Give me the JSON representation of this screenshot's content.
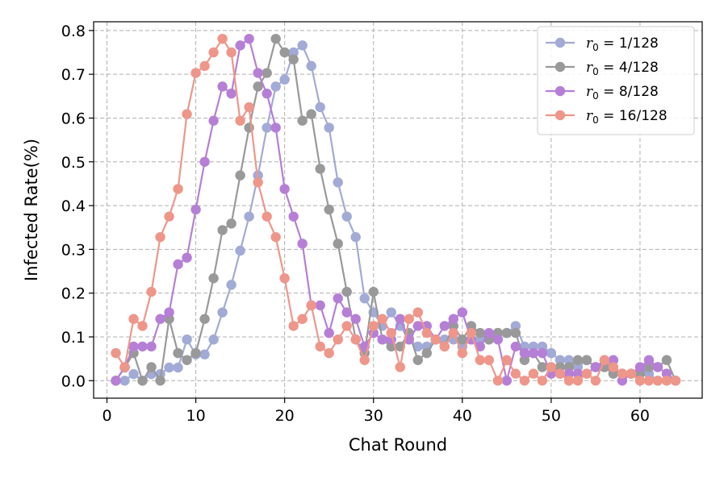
{
  "chart_data": {
    "type": "line",
    "title": "",
    "xlabel": "Chat Round",
    "ylabel": "Infected Rate(%)",
    "xlim": [
      -1.5,
      67
    ],
    "ylim": [
      -0.04,
      0.82
    ],
    "xticks": [
      0,
      10,
      20,
      30,
      40,
      50,
      60
    ],
    "yticks": [
      0.0,
      0.1,
      0.2,
      0.3,
      0.4,
      0.5,
      0.6,
      0.7,
      0.8
    ],
    "xtick_labels": [
      "0",
      "10",
      "20",
      "30",
      "40",
      "50",
      "60"
    ],
    "ytick_labels": [
      "0.0",
      "0.1",
      "0.2",
      "0.3",
      "0.4",
      "0.5",
      "0.6",
      "0.7",
      "0.8"
    ],
    "grid": true,
    "grid_style": "dashed",
    "legend_position": "top-right",
    "x": [
      1,
      2,
      3,
      4,
      5,
      6,
      7,
      8,
      9,
      10,
      11,
      12,
      13,
      14,
      15,
      16,
      17,
      18,
      19,
      20,
      21,
      22,
      23,
      24,
      25,
      26,
      27,
      28,
      29,
      30,
      31,
      32,
      33,
      34,
      35,
      36,
      37,
      38,
      39,
      40,
      41,
      42,
      43,
      44,
      45,
      46,
      47,
      48,
      49,
      50,
      51,
      52,
      53,
      54,
      55,
      56,
      57,
      58,
      59,
      60,
      61,
      62,
      63,
      64
    ],
    "series": [
      {
        "name": "1/128",
        "color": "#a2aad6",
        "values": [
          0,
          0,
          0.015,
          0,
          0.015,
          0.015,
          0.03,
          0.03,
          0.094,
          0.06,
          0.06,
          0.094,
          0.156,
          0.219,
          0.297,
          0.375,
          0.469,
          0.578,
          0.672,
          0.688,
          0.75,
          0.766,
          0.719,
          0.625,
          0.578,
          0.453,
          0.375,
          0.328,
          0.188,
          0.156,
          0.125,
          0.156,
          0.125,
          0.094,
          0.078,
          0.078,
          0.094,
          0.094,
          0.094,
          0.078,
          0.094,
          0.094,
          0.094,
          0.109,
          0.109,
          0.125,
          0.078,
          0.078,
          0.078,
          0.063,
          0.047,
          0.047,
          0.031,
          0.047,
          0.031,
          0.031,
          0.016,
          0.016,
          0.016,
          0.016,
          0.016,
          0,
          0,
          0
        ]
      },
      {
        "name": "4/128",
        "color": "#999999",
        "values": [
          0,
          0.03,
          0.063,
          0,
          0.031,
          0,
          0.141,
          0.063,
          0.047,
          0.063,
          0.141,
          0.234,
          0.344,
          0.359,
          0.469,
          0.578,
          0.672,
          0.703,
          0.781,
          0.75,
          0.734,
          0.594,
          0.609,
          0.484,
          0.391,
          0.313,
          0.203,
          0.094,
          0.063,
          0.203,
          0.094,
          0.078,
          0.078,
          0.109,
          0.047,
          0.063,
          0.094,
          0.078,
          0.125,
          0.094,
          0.125,
          0.109,
          0.094,
          0.109,
          0.109,
          0.109,
          0.047,
          0.063,
          0.031,
          0.031,
          0.031,
          0.031,
          0.047,
          0.047,
          0.031,
          0.031,
          0.016,
          0.016,
          0.016,
          0.016,
          0.031,
          0.031,
          0.047,
          0
        ]
      },
      {
        "name": "8/128",
        "color": "#b67fd6",
        "values": [
          0,
          0.031,
          0.078,
          0.078,
          0.078,
          0.141,
          0.156,
          0.266,
          0.281,
          0.391,
          0.5,
          0.594,
          0.672,
          0.656,
          0.766,
          0.781,
          0.703,
          0.656,
          0.578,
          0.438,
          0.375,
          0.313,
          0.172,
          0.172,
          0.109,
          0.188,
          0.156,
          0.141,
          0.078,
          0.109,
          0.094,
          0.094,
          0.141,
          0.094,
          0.125,
          0.125,
          0.094,
          0.125,
          0.141,
          0.156,
          0.094,
          0.078,
          0.109,
          0.094,
          0,
          0.078,
          0.063,
          0.063,
          0.063,
          0.016,
          0.016,
          0.016,
          0.016,
          0.016,
          0.031,
          0.047,
          0.047,
          0,
          0.016,
          0.031,
          0.047,
          0.031,
          0.016,
          0
        ]
      },
      {
        "name": "16/128",
        "color": "#ee968a",
        "values": [
          0.063,
          0.031,
          0.141,
          0.125,
          0.203,
          0.328,
          0.375,
          0.438,
          0.609,
          0.703,
          0.719,
          0.75,
          0.781,
          0.75,
          0.594,
          0.625,
          0.453,
          0.375,
          0.328,
          0.234,
          0.125,
          0.141,
          0.172,
          0.078,
          0.063,
          0.094,
          0.125,
          0.094,
          0.047,
          0.125,
          0.141,
          0.109,
          0.031,
          0.141,
          0.156,
          0.109,
          0.094,
          0.078,
          0.109,
          0.063,
          0.109,
          0.047,
          0.047,
          0,
          0.047,
          0.016,
          0,
          0.016,
          0,
          0.031,
          0.016,
          0,
          0,
          0.016,
          0,
          0.047,
          0.031,
          0.016,
          0.016,
          0,
          0,
          0,
          0,
          0
        ]
      }
    ]
  },
  "legend": {
    "symbol": "r",
    "subscript": "0",
    "equals": " = "
  }
}
